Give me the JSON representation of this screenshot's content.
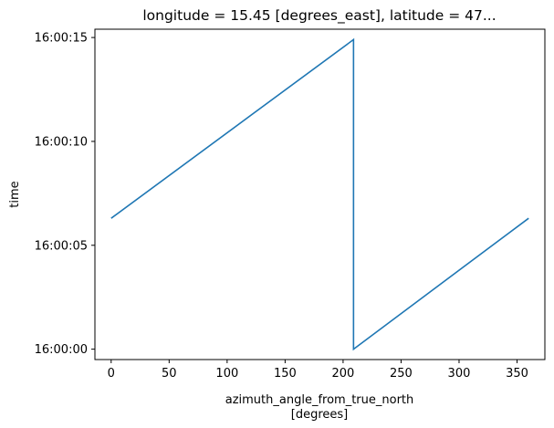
{
  "chart_data": {
    "type": "line",
    "title": "longitude = 15.45 [degrees_east], latitude = 47...",
    "xlabel": "azimuth_angle_from_true_north",
    "xlabel_unit": "[degrees]",
    "ylabel": "time",
    "xlim": [
      -14,
      374
    ],
    "ylim": [
      -0.5,
      15.4
    ],
    "x_ticks": [
      0,
      50,
      100,
      150,
      200,
      250,
      300,
      350
    ],
    "x_tick_labels": [
      "0",
      "50",
      "100",
      "150",
      "200",
      "250",
      "300",
      "350"
    ],
    "y_ticks": [
      0,
      5,
      10,
      15
    ],
    "y_tick_labels": [
      "16:00:00",
      "16:00:05",
      "16:00:10",
      "16:00:15"
    ],
    "grid": false,
    "series": [
      {
        "color": "#1f77b4",
        "x": [
          0,
          209,
          209,
          360
        ],
        "y": [
          6.3,
          14.9,
          0.0,
          6.3
        ]
      }
    ]
  }
}
